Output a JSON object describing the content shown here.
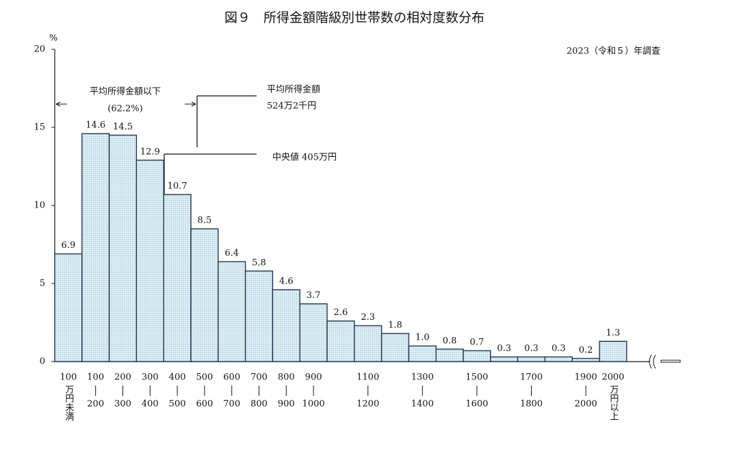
{
  "chart_data": {
    "type": "bar",
    "title": "図９　所得金額階級別世帯数の相対度数分布",
    "subtitle": "2023（令和５）年調査",
    "y_label": "%",
    "categories": [
      [
        "100",
        "万円未満"
      ],
      [
        "100",
        "200"
      ],
      [
        "200",
        "300"
      ],
      [
        "300",
        "400"
      ],
      [
        "400",
        "500"
      ],
      [
        "500",
        "600"
      ],
      [
        "600",
        "700"
      ],
      [
        "700",
        "800"
      ],
      [
        "800",
        "900"
      ],
      [
        "900",
        "1000"
      ],
      null,
      [
        "1100",
        "1200"
      ],
      null,
      [
        "1300",
        "1400"
      ],
      null,
      [
        "1500",
        "1600"
      ],
      null,
      [
        "1700",
        "1800"
      ],
      null,
      [
        "1900",
        "2000"
      ],
      [
        "2000",
        "万円以上"
      ]
    ],
    "values": [
      6.9,
      14.6,
      14.5,
      12.9,
      10.7,
      8.5,
      6.4,
      5.8,
      4.6,
      3.7,
      2.6,
      2.3,
      1.8,
      1.0,
      0.8,
      0.7,
      0.3,
      0.3,
      0.3,
      0.2,
      1.3
    ],
    "value_labels": [
      "6.9",
      "14.6",
      "14.5",
      "12.9",
      "10.7",
      "8.5",
      "6.4",
      "5.8",
      "4.6",
      "3.7",
      "2.6",
      "2.3",
      "1.8",
      "1.0",
      "0.8",
      "0.7",
      "0.3",
      "0.3",
      "0.3",
      "0.2",
      "1.3"
    ],
    "color": "#dcedf3",
    "ylim": [
      0,
      20
    ],
    "yticks": [
      0,
      5,
      10,
      15,
      20
    ],
    "annotations": {
      "below_mean": "平均所得金額以下",
      "below_mean_share": "(62.2%)",
      "mean": "平均所得金額",
      "mean_value": "524万2千円",
      "median": "中央値 405万円"
    }
  }
}
